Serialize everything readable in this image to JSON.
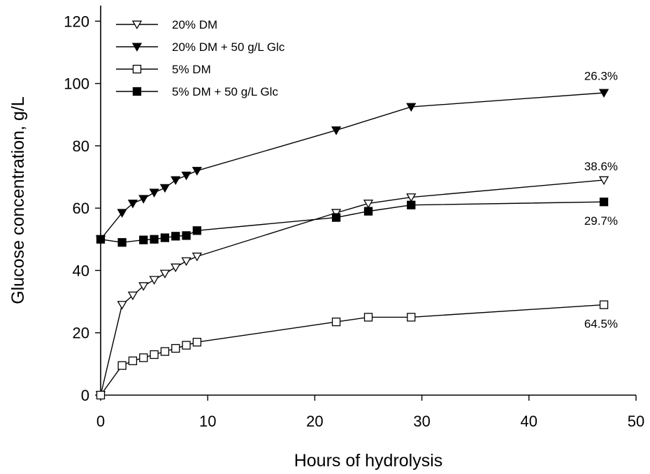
{
  "chart_data": {
    "type": "line",
    "xlabel": "Hours of hydrolysis",
    "ylabel": "Glucose concentration, g/L",
    "xlim": [
      0,
      50
    ],
    "ylim": [
      0,
      125
    ],
    "xticks": [
      0,
      10,
      20,
      30,
      40,
      50
    ],
    "yticks": [
      0,
      20,
      40,
      60,
      80,
      100,
      120
    ],
    "grid": false,
    "legend_position": "top-left",
    "series": [
      {
        "name": "20% DM",
        "marker": "triangle-down-open",
        "x": [
          0,
          2,
          3,
          4,
          5,
          6,
          7,
          8,
          9,
          22,
          25,
          29,
          47
        ],
        "y": [
          0,
          29,
          32,
          35,
          37,
          39,
          41,
          43,
          44.5,
          58.5,
          61.5,
          63.5,
          69
        ]
      },
      {
        "name": "20% DM + 50 g/L Glc",
        "marker": "triangle-down-filled",
        "x": [
          0,
          2,
          3,
          4,
          5,
          6,
          7,
          8,
          9,
          22,
          29,
          47
        ],
        "y": [
          50,
          58.5,
          61.5,
          63,
          65,
          66.5,
          69,
          70.5,
          72,
          85,
          92.5,
          97
        ]
      },
      {
        "name": "5% DM",
        "marker": "square-open",
        "x": [
          0,
          2,
          3,
          4,
          5,
          6,
          7,
          8,
          9,
          22,
          25,
          29,
          47
        ],
        "y": [
          0,
          9.5,
          11,
          12,
          13,
          14,
          15,
          16,
          17,
          23.5,
          25,
          25,
          29
        ]
      },
      {
        "name": "5% DM + 50 g/L Glc",
        "marker": "square-filled",
        "x": [
          0,
          2,
          4,
          5,
          6,
          7,
          8,
          9,
          22,
          25,
          29,
          47
        ],
        "y": [
          50,
          49,
          49.8,
          50,
          50.5,
          51,
          51.2,
          52.8,
          57,
          59,
          61,
          62
        ]
      }
    ],
    "annotations": [
      {
        "text": "26.3%",
        "x": 47,
        "y": 102.5
      },
      {
        "text": "38.6%",
        "x": 47,
        "y": 73.5
      },
      {
        "text": "29.7%",
        "x": 47,
        "y": 56
      },
      {
        "text": "64.5%",
        "x": 47,
        "y": 23
      }
    ]
  }
}
